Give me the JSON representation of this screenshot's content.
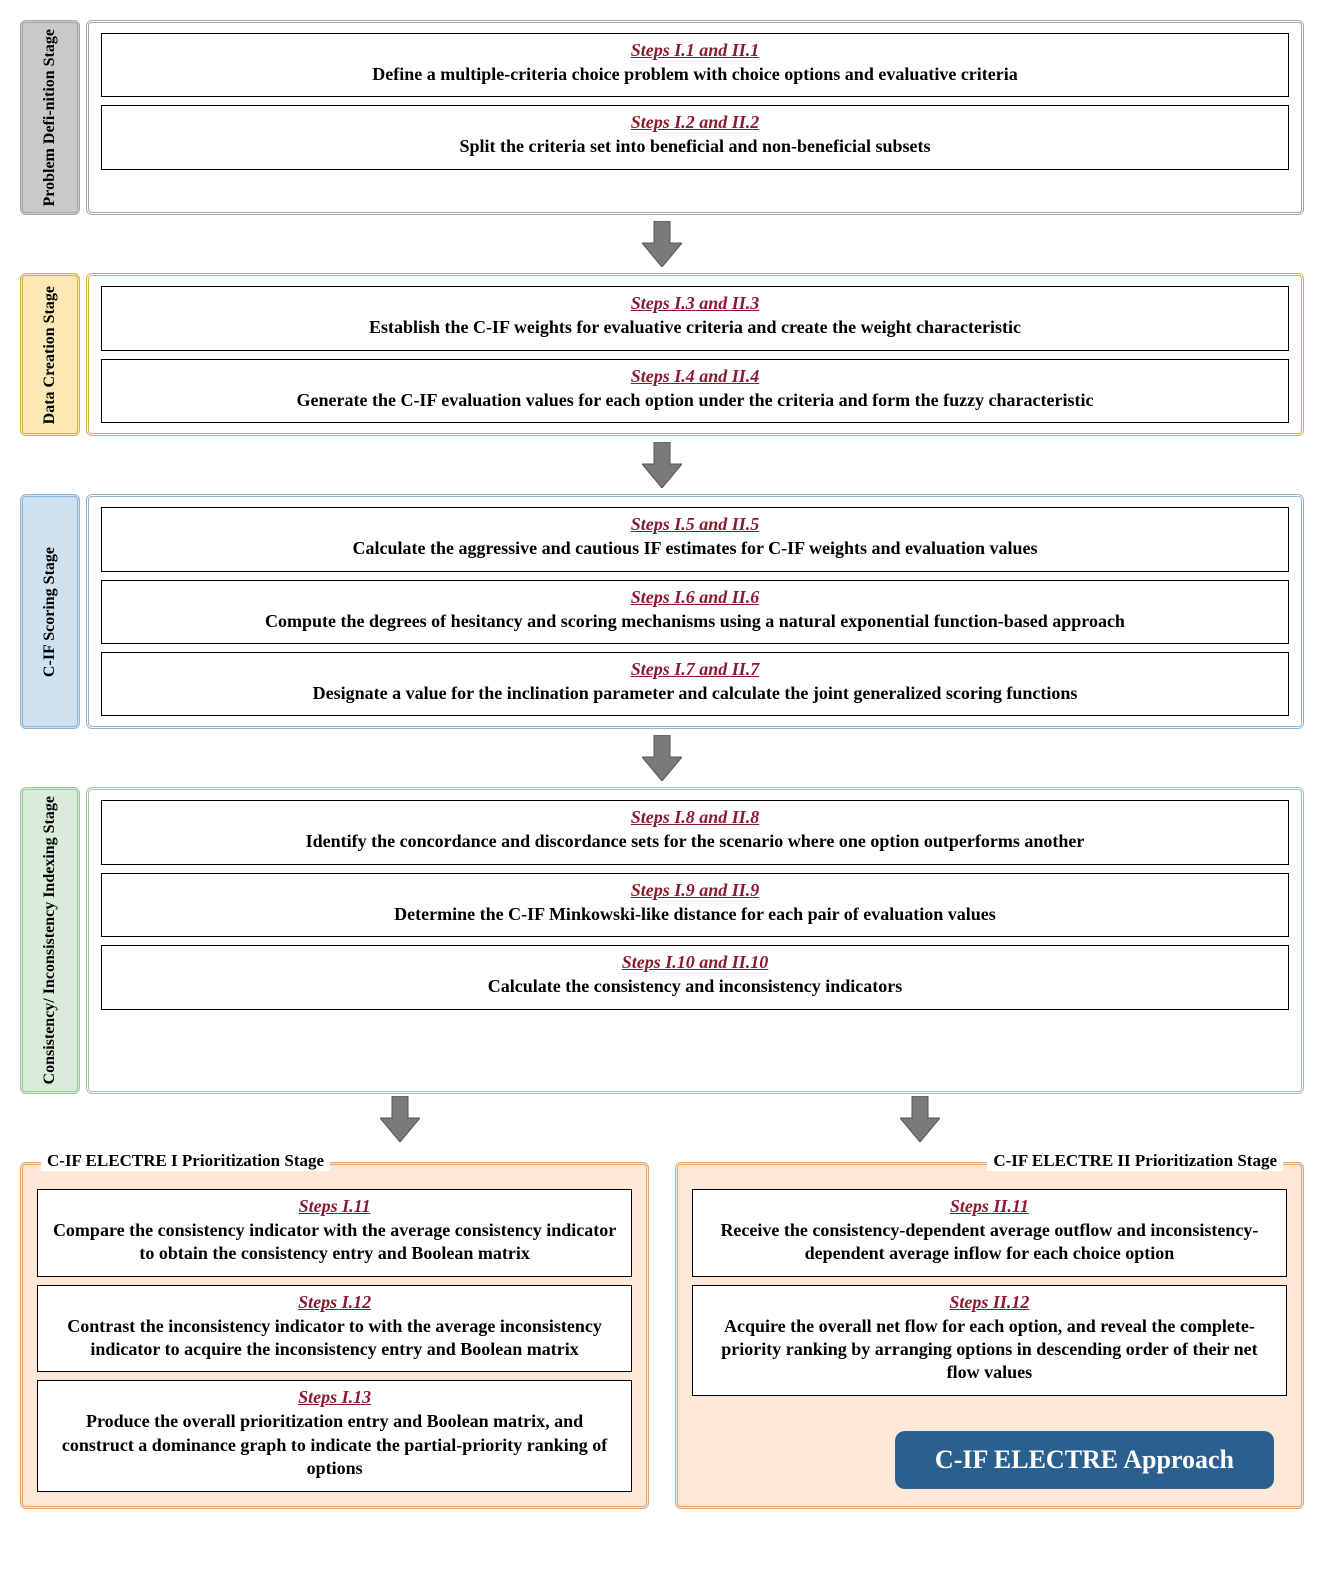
{
  "colors": {
    "step_title": "#8a1a2f",
    "stage1_bg": "#c9c9c9",
    "stage1_border": "#a6a6a6",
    "stage2_bg": "#fbe8b4",
    "stage2_border": "#d6b24a",
    "stage3_bg": "#cfe0ee",
    "stage3_border": "#8fb6d6",
    "stage4_bg": "#d9ebd9",
    "stage4_border": "#9ec79e",
    "stage5_bg": "#fde7d6",
    "stage5_border": "#e2a673",
    "arrow_fill": "#7a7a7a",
    "badge_bg": "#2b5f8e"
  },
  "stages": [
    {
      "label": "Problem Defi-nition Stage",
      "steps": [
        {
          "title": "Steps I.1 and II.1",
          "desc": "Define a multiple-criteria choice problem with choice options and evaluative criteria"
        },
        {
          "title": "Steps I.2 and II.2",
          "desc": "Split the criteria set into beneficial and non-beneficial subsets"
        }
      ]
    },
    {
      "label": "Data Creation Stage",
      "steps": [
        {
          "title": "Steps I.3 and II.3",
          "desc": "Establish the C-IF weights for evaluative criteria and create the weight characteristic"
        },
        {
          "title": "Steps I.4 and II.4",
          "desc": "Generate the C-IF evaluation values for each option under the criteria and form the fuzzy characteristic"
        }
      ]
    },
    {
      "label": "C-IF Scoring Stage",
      "steps": [
        {
          "title": "Steps I.5 and II.5",
          "desc": "Calculate the aggressive and cautious IF estimates for C-IF weights and evaluation values"
        },
        {
          "title": "Steps I.6 and II.6",
          "desc": "Compute the degrees of hesitancy and scoring mechanisms using a natural exponential function-based approach"
        },
        {
          "title": "Steps I.7 and II.7",
          "desc": "Designate a value for the inclination parameter and calculate the joint generalized scoring functions"
        }
      ]
    },
    {
      "label": "Consistency/ Inconsistency Indexing Stage",
      "steps": [
        {
          "title": "Steps I.8 and II.8",
          "desc": "Identify the concordance and discordance sets for the scenario where one option outperforms another"
        },
        {
          "title": "Steps I.9 and II.9",
          "desc": "Determine the C-IF Minkowski-like distance for each pair of evaluation values"
        },
        {
          "title": "Steps I.10 and II.10",
          "desc": "Calculate the consistency and inconsistency indicators"
        }
      ]
    }
  ],
  "branches": {
    "left": {
      "legend": "C-IF ELECTRE I Prioritization Stage",
      "steps": [
        {
          "title": "Steps I.11",
          "desc": "Compare the consistency indicator with the average consistency indicator to obtain the consistency entry and Boolean matrix"
        },
        {
          "title": "Steps I.12",
          "desc": "Contrast the inconsistency indicator to with the average inconsistency indicator to acquire the inconsistency entry and Boolean matrix"
        },
        {
          "title": "Steps I.13",
          "desc": "Produce the overall prioritization entry and Boolean matrix, and construct a dominance graph to indicate the partial-priority ranking of options"
        }
      ]
    },
    "right": {
      "legend": "C-IF ELECTRE II Prioritization Stage",
      "steps": [
        {
          "title": "Steps II.11",
          "desc": "Receive the consistency-dependent average outflow and inconsistency-dependent average inflow for each choice option"
        },
        {
          "title": "Steps II.12",
          "desc": "Acquire the overall net flow for each option, and reveal the complete-priority ranking by arranging options in descending order of their net flow values"
        }
      ]
    }
  },
  "badge": "C-IF ELECTRE Approach",
  "arrow": {
    "w": 40,
    "h": 46
  }
}
